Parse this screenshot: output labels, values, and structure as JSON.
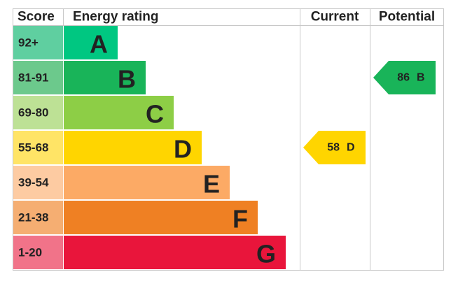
{
  "headers": {
    "score": "Score",
    "rating": "Energy rating",
    "current": "Current",
    "potential": "Potential"
  },
  "bands": [
    {
      "score": "92+",
      "letter": "A",
      "color": "#00c781",
      "score_color": "#5fcfa0"
    },
    {
      "score": "81-91",
      "letter": "B",
      "color": "#19b459",
      "score_color": "#6cc98c"
    },
    {
      "score": "69-80",
      "letter": "C",
      "color": "#8dce46",
      "score_color": "#bde195"
    },
    {
      "score": "55-68",
      "letter": "D",
      "color": "#ffd500",
      "score_color": "#ffe466"
    },
    {
      "score": "39-54",
      "letter": "E",
      "color": "#fcaa65",
      "score_color": "#fdcba2"
    },
    {
      "score": "21-38",
      "letter": "F",
      "color": "#ef8023",
      "score_color": "#f5ae72"
    },
    {
      "score": "1-20",
      "letter": "G",
      "color": "#e9153b",
      "score_color": "#f17389"
    }
  ],
  "current": {
    "value": "58",
    "letter": "D"
  },
  "potential": {
    "value": "86",
    "letter": "B"
  }
}
